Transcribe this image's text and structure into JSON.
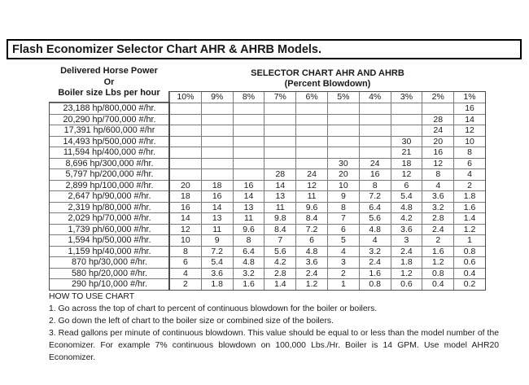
{
  "title": "Flash Economizer Selector Chart AHR & AHRB Models.",
  "left_header": {
    "line1": "Delivered Horse Power",
    "line2": "Or",
    "line3": "Boiler size Lbs per hour"
  },
  "right_header": {
    "line1": "SELECTOR CHART AHR AND AHRB",
    "line2": "(Percent Blowdown)"
  },
  "table": {
    "columns": [
      "10%",
      "9%",
      "8%",
      "7%",
      "6%",
      "5%",
      "4%",
      "3%",
      "2%",
      "1%"
    ],
    "rows": [
      {
        "label": "23,188 hp/800,000 #/hr.",
        "values": [
          "",
          "",
          "",
          "",
          "",
          "",
          "",
          "",
          "",
          "16"
        ]
      },
      {
        "label": "20,290 hp/700,000 #/hr.",
        "values": [
          "",
          "",
          "",
          "",
          "",
          "",
          "",
          "",
          "28",
          "14"
        ]
      },
      {
        "label": "17,391 hp/600,000 #/hr",
        "values": [
          "",
          "",
          "",
          "",
          "",
          "",
          "",
          "",
          "24",
          "12"
        ]
      },
      {
        "label": "14,493 hp/500,000 #/hr.",
        "values": [
          "",
          "",
          "",
          "",
          "",
          "",
          "",
          "30",
          "20",
          "10"
        ]
      },
      {
        "label": "11,594 hp/400,000 #/hr.",
        "values": [
          "",
          "",
          "",
          "",
          "",
          "",
          "",
          "21",
          "16",
          "8"
        ]
      },
      {
        "label": "8,696 hp/300,000 #/hr.",
        "values": [
          "",
          "",
          "",
          "",
          "",
          "30",
          "24",
          "18",
          "12",
          "6"
        ]
      },
      {
        "label": "5,797 hp/200,000 #/hr.",
        "values": [
          "",
          "",
          "",
          "28",
          "24",
          "20",
          "16",
          "12",
          "8",
          "4"
        ]
      },
      {
        "label": "2,899 hp/100,000 #/hr.",
        "values": [
          "20",
          "18",
          "16",
          "14",
          "12",
          "10",
          "8",
          "6",
          "4",
          "2"
        ]
      },
      {
        "label": "2,647 hp/90,000 #/hr.",
        "values": [
          "18",
          "16",
          "14",
          "13",
          "11",
          "9",
          "7.2",
          "5.4",
          "3.6",
          "1.8"
        ]
      },
      {
        "label": "2,319 hp/80,000 #/hr.",
        "values": [
          "16",
          "14",
          "13",
          "11",
          "9.6",
          "8",
          "6.4",
          "4.8",
          "3.2",
          "1.6"
        ]
      },
      {
        "label": "2,029 hp/70,000 #/hr.",
        "values": [
          "14",
          "13",
          "11",
          "9.8",
          "8.4",
          "7",
          "5.6",
          "4.2",
          "2.8",
          "1.4"
        ]
      },
      {
        "label": "1,739 ph/60,000 #/hr.",
        "values": [
          "12",
          "11",
          "9.6",
          "8.4",
          "7.2",
          "6",
          "4.8",
          "3.6",
          "2.4",
          "1.2"
        ]
      },
      {
        "label": "1,594 hp/50,000 #/hr.",
        "values": [
          "10",
          "9",
          "8",
          "7",
          "6",
          "5",
          "4",
          "3",
          "2",
          "1"
        ]
      },
      {
        "label": "1,159 hp/40,000 #/hr.",
        "values": [
          "8",
          "7.2",
          "6.4",
          "5.6",
          "4.8",
          "4",
          "3.2",
          "2.4",
          "1.6",
          "0.8"
        ]
      },
      {
        "label": "870 hp/30,000 #/hr.",
        "values": [
          "6",
          "5.4",
          "4.8",
          "4.2",
          "3.6",
          "3",
          "2.4",
          "1.8",
          "1.2",
          "0.6"
        ]
      },
      {
        "label": "580 hp/20,000 #/hr.",
        "values": [
          "4",
          "3.6",
          "3.2",
          "2.8",
          "2.4",
          "2",
          "1.6",
          "1.2",
          "0.8",
          "0.4"
        ]
      },
      {
        "label": "290 hp/10,000 #/hr.",
        "values": [
          "2",
          "1.8",
          "1.6",
          "1.4",
          "1.2",
          "1",
          "0.8",
          "0.6",
          "0.4",
          "0.2"
        ]
      }
    ]
  },
  "instructions": {
    "heading": "HOW TO USE CHART",
    "items": [
      "1. Go across the top of chart to percent of continuous blowdown for the boiler or boilers.",
      "2. Go down the left of chart to the boiler size or combined size of the boilers.",
      "3. Read gallons per minute of continuous blowdown. This value should be equal to or less than the model number of the Economizer. For example 7% continuous blowdown on 100,000 Lbs./Hr. Boiler is 14 GPM. Use model AHR20 Economizer."
    ]
  },
  "colors": {
    "grid_line": "#7b7b7b",
    "outer_border": "#4d4d4d",
    "title_border": "#000000",
    "text": "#1a1a1a",
    "background": "#ffffff"
  }
}
